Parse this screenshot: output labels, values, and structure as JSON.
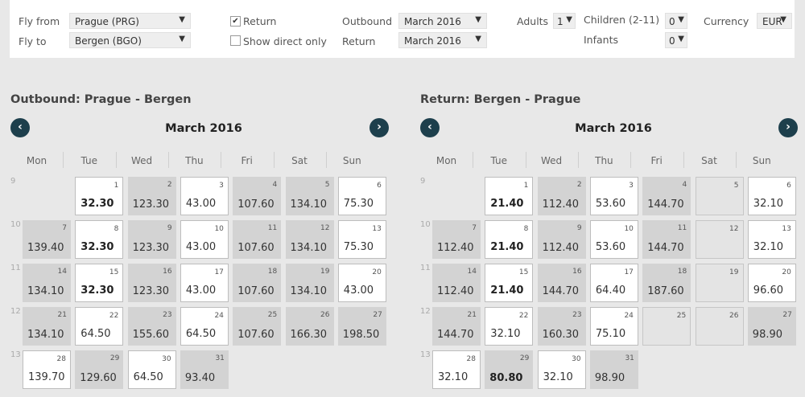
{
  "search": {
    "fly_from_label": "Fly from",
    "fly_from_value": "Prague (PRG)",
    "fly_to_label": "Fly to",
    "fly_to_value": "Bergen (BGO)",
    "return_label": "Return",
    "return_checked": true,
    "direct_label": "Show direct only",
    "outbound_label": "Outbound",
    "outbound_value": "March 2016",
    "return_month_label": "Return",
    "return_month_value": "March 2016",
    "adults_label": "Adults",
    "adults_value": "1",
    "children_label": "Children (2-11)",
    "children_value": "0",
    "infants_label": "Infants",
    "infants_value": "0",
    "currency_label": "Currency",
    "currency_value": "EUR"
  },
  "outbound": {
    "title": "Outbound:  Prague - Bergen",
    "month": "March 2016",
    "weekdays": [
      "Mon",
      "Tue",
      "Wed",
      "Thu",
      "Fri",
      "Sat",
      "Sun"
    ],
    "weeks": [
      {
        "num": "9",
        "days": [
          null,
          {
            "d": "1",
            "p": "32.30",
            "t": "w",
            "b": true
          },
          {
            "d": "2",
            "p": "123.30",
            "t": "g"
          },
          {
            "d": "3",
            "p": "43.00",
            "t": "w"
          },
          {
            "d": "4",
            "p": "107.60",
            "t": "g"
          },
          {
            "d": "5",
            "p": "134.10",
            "t": "g"
          },
          {
            "d": "6",
            "p": "75.30",
            "t": "w"
          }
        ]
      },
      {
        "num": "10",
        "days": [
          {
            "d": "7",
            "p": "139.40",
            "t": "g"
          },
          {
            "d": "8",
            "p": "32.30",
            "t": "w",
            "b": true
          },
          {
            "d": "9",
            "p": "123.30",
            "t": "g"
          },
          {
            "d": "10",
            "p": "43.00",
            "t": "w"
          },
          {
            "d": "11",
            "p": "107.60",
            "t": "g"
          },
          {
            "d": "12",
            "p": "134.10",
            "t": "g"
          },
          {
            "d": "13",
            "p": "75.30",
            "t": "w"
          }
        ]
      },
      {
        "num": "11",
        "days": [
          {
            "d": "14",
            "p": "134.10",
            "t": "g"
          },
          {
            "d": "15",
            "p": "32.30",
            "t": "w",
            "b": true
          },
          {
            "d": "16",
            "p": "123.30",
            "t": "g"
          },
          {
            "d": "17",
            "p": "43.00",
            "t": "w"
          },
          {
            "d": "18",
            "p": "107.60",
            "t": "g"
          },
          {
            "d": "19",
            "p": "134.10",
            "t": "g"
          },
          {
            "d": "20",
            "p": "43.00",
            "t": "w"
          }
        ]
      },
      {
        "num": "12",
        "days": [
          {
            "d": "21",
            "p": "134.10",
            "t": "g"
          },
          {
            "d": "22",
            "p": "64.50",
            "t": "w"
          },
          {
            "d": "23",
            "p": "155.60",
            "t": "g"
          },
          {
            "d": "24",
            "p": "64.50",
            "t": "w"
          },
          {
            "d": "25",
            "p": "107.60",
            "t": "g"
          },
          {
            "d": "26",
            "p": "166.30",
            "t": "g"
          },
          {
            "d": "27",
            "p": "198.50",
            "t": "g"
          }
        ]
      },
      {
        "num": "13",
        "days": [
          {
            "d": "28",
            "p": "139.70",
            "t": "w"
          },
          {
            "d": "29",
            "p": "129.60",
            "t": "g"
          },
          {
            "d": "30",
            "p": "64.50",
            "t": "w"
          },
          {
            "d": "31",
            "p": "93.40",
            "t": "g"
          },
          null,
          null,
          null
        ]
      }
    ]
  },
  "return": {
    "title": "Return:  Bergen - Prague",
    "month": "March 2016",
    "weekdays": [
      "Mon",
      "Tue",
      "Wed",
      "Thu",
      "Fri",
      "Sat",
      "Sun"
    ],
    "weeks": [
      {
        "num": "9",
        "days": [
          null,
          {
            "d": "1",
            "p": "21.40",
            "t": "w",
            "b": true
          },
          {
            "d": "2",
            "p": "112.40",
            "t": "g"
          },
          {
            "d": "3",
            "p": "53.60",
            "t": "w"
          },
          {
            "d": "4",
            "p": "144.70",
            "t": "g"
          },
          {
            "d": "5",
            "p": "",
            "t": "e"
          },
          {
            "d": "6",
            "p": "32.10",
            "t": "w"
          }
        ]
      },
      {
        "num": "10",
        "days": [
          {
            "d": "7",
            "p": "112.40",
            "t": "g"
          },
          {
            "d": "8",
            "p": "21.40",
            "t": "w",
            "b": true
          },
          {
            "d": "9",
            "p": "112.40",
            "t": "g"
          },
          {
            "d": "10",
            "p": "53.60",
            "t": "w"
          },
          {
            "d": "11",
            "p": "144.70",
            "t": "g"
          },
          {
            "d": "12",
            "p": "",
            "t": "e"
          },
          {
            "d": "13",
            "p": "32.10",
            "t": "w"
          }
        ]
      },
      {
        "num": "11",
        "days": [
          {
            "d": "14",
            "p": "112.40",
            "t": "g"
          },
          {
            "d": "15",
            "p": "21.40",
            "t": "w",
            "b": true
          },
          {
            "d": "16",
            "p": "144.70",
            "t": "g"
          },
          {
            "d": "17",
            "p": "64.40",
            "t": "w"
          },
          {
            "d": "18",
            "p": "187.60",
            "t": "g"
          },
          {
            "d": "19",
            "p": "",
            "t": "e"
          },
          {
            "d": "20",
            "p": "96.60",
            "t": "w"
          }
        ]
      },
      {
        "num": "12",
        "days": [
          {
            "d": "21",
            "p": "144.70",
            "t": "g"
          },
          {
            "d": "22",
            "p": "32.10",
            "t": "w"
          },
          {
            "d": "23",
            "p": "160.30",
            "t": "g"
          },
          {
            "d": "24",
            "p": "75.10",
            "t": "w"
          },
          {
            "d": "25",
            "p": "",
            "t": "e"
          },
          {
            "d": "26",
            "p": "",
            "t": "e"
          },
          {
            "d": "27",
            "p": "98.90",
            "t": "g"
          }
        ]
      },
      {
        "num": "13",
        "days": [
          {
            "d": "28",
            "p": "32.10",
            "t": "w"
          },
          {
            "d": "29",
            "p": "80.80",
            "t": "g",
            "b": true
          },
          {
            "d": "30",
            "p": "32.10",
            "t": "w"
          },
          {
            "d": "31",
            "p": "98.90",
            "t": "g"
          },
          null,
          null,
          null
        ]
      }
    ]
  }
}
